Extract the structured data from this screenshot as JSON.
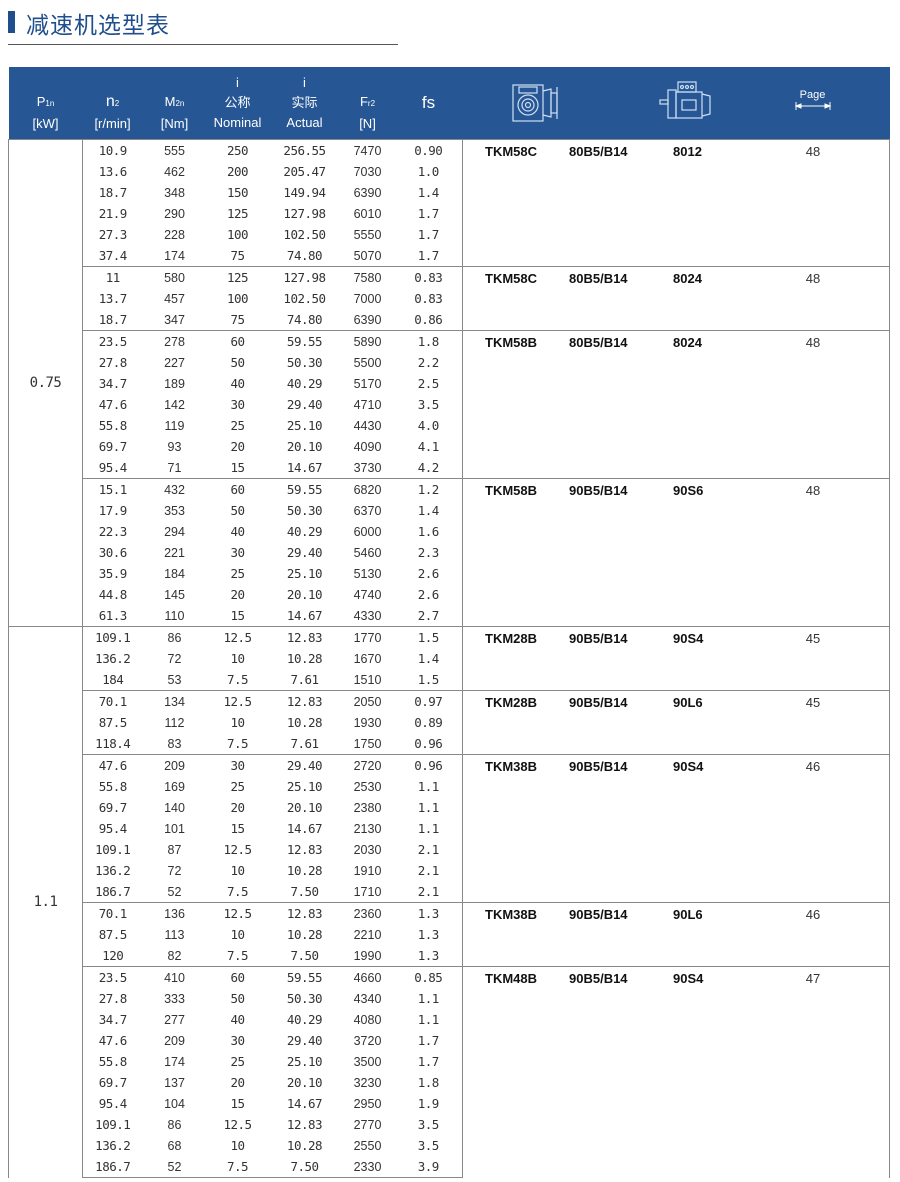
{
  "page_title": "减速机选型表",
  "colors": {
    "accent": "#1f4e8c",
    "header_bg": "#265694"
  },
  "header": {
    "p1n": {
      "symbol": "P",
      "sub": "1n",
      "unit": "[kW]"
    },
    "n2": {
      "symbol": "n",
      "sub": "2",
      "unit": "[r/min]"
    },
    "m2n": {
      "symbol": "M",
      "sub": "2n",
      "unit": "[Nm]"
    },
    "i_nominal": {
      "symbol": "i",
      "cn": "公称",
      "en": "Nominal"
    },
    "i_actual": {
      "symbol": "i",
      "cn": "实际",
      "en": "Actual"
    },
    "fr2": {
      "symbol": "F",
      "sub": "r2",
      "unit": "[N]"
    },
    "fs": "fs",
    "gearbox_icon": "worm-gearbox-icon",
    "motor_icon": "electric-motor-icon",
    "page": "Page"
  },
  "groups": [
    {
      "power": "0.75",
      "sets": [
        {
          "model": "TKM58C",
          "flange": "80B5/B14",
          "motor": "8012",
          "page": "48",
          "rows": [
            [
              "10.9",
              "555",
              "250",
              "256.55",
              "7470",
              "0.90"
            ],
            [
              "13.6",
              "462",
              "200",
              "205.47",
              "7030",
              "1.0"
            ],
            [
              "18.7",
              "348",
              "150",
              "149.94",
              "6390",
              "1.4"
            ],
            [
              "21.9",
              "290",
              "125",
              "127.98",
              "6010",
              "1.7"
            ],
            [
              "27.3",
              "228",
              "100",
              "102.50",
              "5550",
              "1.7"
            ],
            [
              "37.4",
              "174",
              "75",
              "74.80",
              "5070",
              "1.7"
            ]
          ]
        },
        {
          "model": "TKM58C",
          "flange": "80B5/B14",
          "motor": "8024",
          "page": "48",
          "rows": [
            [
              "11",
              "580",
              "125",
              "127.98",
              "7580",
              "0.83"
            ],
            [
              "13.7",
              "457",
              "100",
              "102.50",
              "7000",
              "0.83"
            ],
            [
              "18.7",
              "347",
              "75",
              "74.80",
              "6390",
              "0.86"
            ]
          ]
        },
        {
          "model": "TKM58B",
          "flange": "80B5/B14",
          "motor": "8024",
          "page": "48",
          "rows": [
            [
              "23.5",
              "278",
              "60",
              "59.55",
              "5890",
              "1.8"
            ],
            [
              "27.8",
              "227",
              "50",
              "50.30",
              "5500",
              "2.2"
            ],
            [
              "34.7",
              "189",
              "40",
              "40.29",
              "5170",
              "2.5"
            ],
            [
              "47.6",
              "142",
              "30",
              "29.40",
              "4710",
              "3.5"
            ],
            [
              "55.8",
              "119",
              "25",
              "25.10",
              "4430",
              "4.0"
            ],
            [
              "69.7",
              "93",
              "20",
              "20.10",
              "4090",
              "4.1"
            ],
            [
              "95.4",
              "71",
              "15",
              "14.67",
              "3730",
              "4.2"
            ]
          ]
        },
        {
          "model": "TKM58B",
          "flange": "90B5/B14",
          "motor": "90S6",
          "page": "48",
          "rows": [
            [
              "15.1",
              "432",
              "60",
              "59.55",
              "6820",
              "1.2"
            ],
            [
              "17.9",
              "353",
              "50",
              "50.30",
              "6370",
              "1.4"
            ],
            [
              "22.3",
              "294",
              "40",
              "40.29",
              "6000",
              "1.6"
            ],
            [
              "30.6",
              "221",
              "30",
              "29.40",
              "5460",
              "2.3"
            ],
            [
              "35.9",
              "184",
              "25",
              "25.10",
              "5130",
              "2.6"
            ],
            [
              "44.8",
              "145",
              "20",
              "20.10",
              "4740",
              "2.6"
            ],
            [
              "61.3",
              "110",
              "15",
              "14.67",
              "4330",
              "2.7"
            ]
          ]
        }
      ]
    },
    {
      "power": "1.1",
      "sets": [
        {
          "model": "TKM28B",
          "flange": "90B5/B14",
          "motor": "90S4",
          "page": "45",
          "rows": [
            [
              "109.1",
              "86",
              "12.5",
              "12.83",
              "1770",
              "1.5"
            ],
            [
              "136.2",
              "72",
              "10",
              "10.28",
              "1670",
              "1.4"
            ],
            [
              "184",
              "53",
              "7.5",
              "7.61",
              "1510",
              "1.5"
            ]
          ]
        },
        {
          "model": "TKM28B",
          "flange": "90B5/B14",
          "motor": "90L6",
          "page": "45",
          "rows": [
            [
              "70.1",
              "134",
              "12.5",
              "12.83",
              "2050",
              "0.97"
            ],
            [
              "87.5",
              "112",
              "10",
              "10.28",
              "1930",
              "0.89"
            ],
            [
              "118.4",
              "83",
              "7.5",
              "7.61",
              "1750",
              "0.96"
            ]
          ]
        },
        {
          "model": "TKM38B",
          "flange": "90B5/B14",
          "motor": "90S4",
          "page": "46",
          "rows": [
            [
              "47.6",
              "209",
              "30",
              "29.40",
              "2720",
              "0.96"
            ],
            [
              "55.8",
              "169",
              "25",
              "25.10",
              "2530",
              "1.1"
            ],
            [
              "69.7",
              "140",
              "20",
              "20.10",
              "2380",
              "1.1"
            ],
            [
              "95.4",
              "101",
              "15",
              "14.67",
              "2130",
              "1.1"
            ],
            [
              "109.1",
              "87",
              "12.5",
              "12.83",
              "2030",
              "2.1"
            ],
            [
              "136.2",
              "72",
              "10",
              "10.28",
              "1910",
              "2.1"
            ],
            [
              "186.7",
              "52",
              "7.5",
              "7.50",
              "1710",
              "2.1"
            ]
          ]
        },
        {
          "model": "TKM38B",
          "flange": "90B5/B14",
          "motor": "90L6",
          "page": "46",
          "rows": [
            [
              "70.1",
              "136",
              "12.5",
              "12.83",
              "2360",
              "1.3"
            ],
            [
              "87.5",
              "113",
              "10",
              "10.28",
              "2210",
              "1.3"
            ],
            [
              "120",
              "82",
              "7.5",
              "7.50",
              "1990",
              "1.3"
            ]
          ]
        },
        {
          "model": "TKM48B",
          "flange": "90B5/B14",
          "motor": "90S4",
          "page": "47",
          "rows": [
            [
              "23.5",
              "410",
              "60",
              "59.55",
              "4660",
              "0.85"
            ],
            [
              "27.8",
              "333",
              "50",
              "50.30",
              "4340",
              "1.1"
            ],
            [
              "34.7",
              "277",
              "40",
              "40.29",
              "4080",
              "1.1"
            ],
            [
              "47.6",
              "209",
              "30",
              "29.40",
              "3720",
              "1.7"
            ],
            [
              "55.8",
              "174",
              "25",
              "25.10",
              "3500",
              "1.7"
            ],
            [
              "69.7",
              "137",
              "20",
              "20.10",
              "3230",
              "1.8"
            ],
            [
              "95.4",
              "104",
              "15",
              "14.67",
              "2950",
              "1.9"
            ],
            [
              "109.1",
              "86",
              "12.5",
              "12.83",
              "2770",
              "3.5"
            ],
            [
              "136.2",
              "68",
              "10",
              "10.28",
              "2550",
              "3.5"
            ],
            [
              "186.7",
              "52",
              "7.5",
              "7.50",
              "2330",
              "3.9"
            ]
          ]
        }
      ]
    }
  ]
}
